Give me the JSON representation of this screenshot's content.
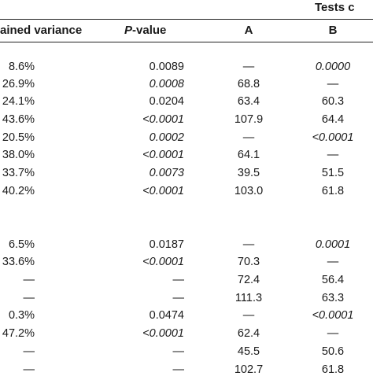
{
  "header": {
    "tests_label": "Tests c",
    "col_variance": "ained variance",
    "col_pvalue_italic": "P",
    "col_pvalue_rest": "-value",
    "col_a": "A",
    "col_b": "B"
  },
  "rows": [
    {
      "variance": "8.6%",
      "p": "0.0089",
      "p_italic": false,
      "a": "—",
      "b": "0.0000",
      "b_italic": true
    },
    {
      "variance": "26.9%",
      "p": "0.0008",
      "p_italic": true,
      "a": "68.8",
      "b": "—",
      "b_italic": false
    },
    {
      "variance": "24.1%",
      "p": "0.0204",
      "p_italic": false,
      "a": "63.4",
      "b": "60.3",
      "b_italic": false
    },
    {
      "variance": "43.6%",
      "p": "<0.0001",
      "p_italic": true,
      "a": "107.9",
      "b": "64.4",
      "b_italic": false
    },
    {
      "variance": "20.5%",
      "p": "0.0002",
      "p_italic": true,
      "a": "—",
      "b": "<0.0001",
      "b_italic": true
    },
    {
      "variance": "38.0%",
      "p": "<0.0001",
      "p_italic": true,
      "a": "64.1",
      "b": "—",
      "b_italic": false
    },
    {
      "variance": "33.7%",
      "p": "0.0073",
      "p_italic": true,
      "a": "39.5",
      "b": "51.5",
      "b_italic": false
    },
    {
      "variance": "40.2%",
      "p": "<0.0001",
      "p_italic": true,
      "a": "103.0",
      "b": "61.8",
      "b_italic": false
    },
    {
      "variance": "6.5%",
      "p": "0.0187",
      "p_italic": false,
      "a": "—",
      "b": "0.0001",
      "b_italic": true
    },
    {
      "variance": "33.6%",
      "p": "<0.0001",
      "p_italic": true,
      "a": "70.3",
      "b": "—",
      "b_italic": false
    },
    {
      "variance": "—",
      "p": "—",
      "p_italic": false,
      "a": "72.4",
      "b": "56.4",
      "b_italic": false
    },
    {
      "variance": "—",
      "p": "—",
      "p_italic": false,
      "a": "111.3",
      "b": "63.3",
      "b_italic": false
    },
    {
      "variance": "0.3%",
      "p": "0.0474",
      "p_italic": false,
      "a": "—",
      "b": "<0.0001",
      "b_italic": true
    },
    {
      "variance": "47.2%",
      "p": "<0.0001",
      "p_italic": true,
      "a": "62.4",
      "b": "—",
      "b_italic": false
    },
    {
      "variance": "—",
      "p": "—",
      "p_italic": false,
      "a": "45.5",
      "b": "50.6",
      "b_italic": false
    },
    {
      "variance": "—",
      "p": "—",
      "p_italic": false,
      "a": "102.7",
      "b": "61.8",
      "b_italic": false
    }
  ]
}
